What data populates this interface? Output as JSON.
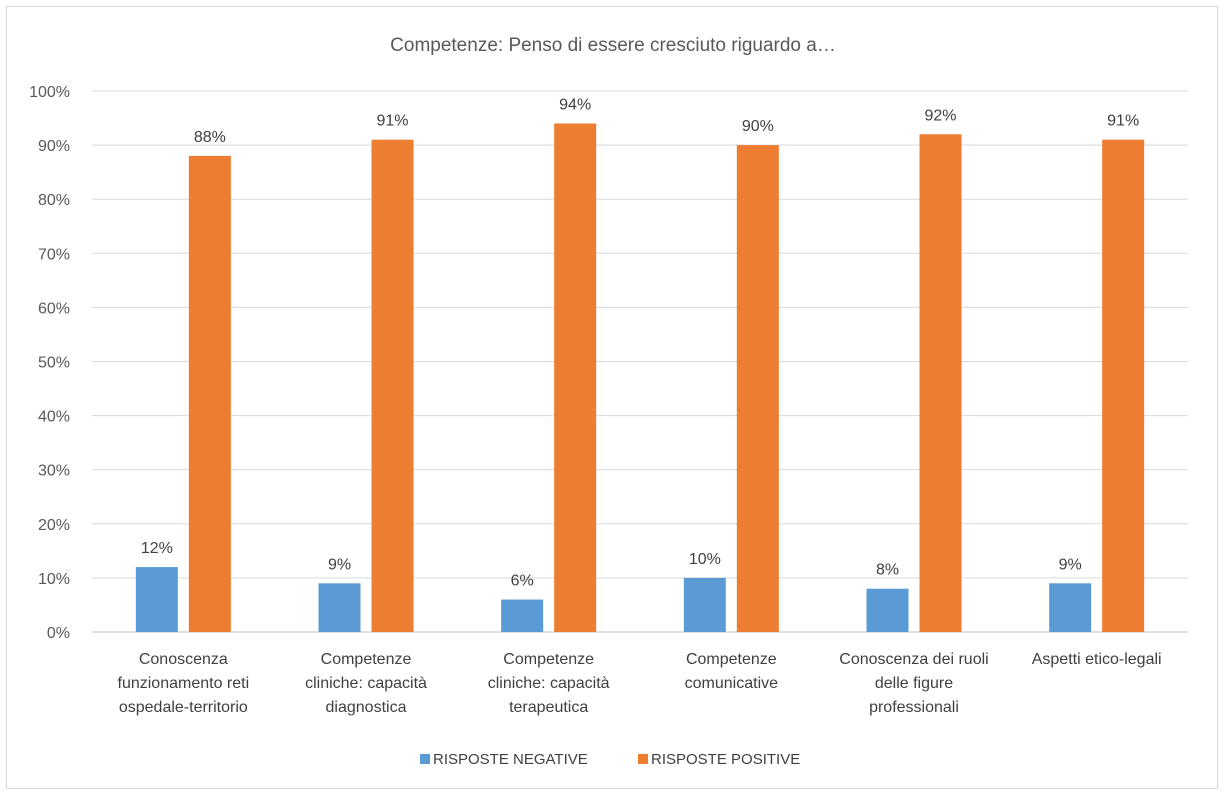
{
  "chart_data": {
    "type": "bar",
    "title": "Competenze: Penso di essere cresciuto riguardo a…",
    "categories": [
      [
        "Conoscenza",
        "funzionamento reti",
        "ospedale-territorio"
      ],
      [
        "Competenze",
        "cliniche: capacità",
        "diagnostica"
      ],
      [
        "Competenze",
        "cliniche: capacità",
        "terapeutica"
      ],
      [
        "Competenze",
        "comunicative"
      ],
      [
        "Conoscenza dei ruoli",
        "delle figure",
        "professionali"
      ],
      [
        "Aspetti etico-legali"
      ]
    ],
    "series": [
      {
        "name": "RISPOSTE NEGATIVE",
        "color": "#5b9bd5",
        "values": [
          12,
          9,
          6,
          10,
          8,
          9
        ],
        "labels": [
          "12%",
          "9%",
          "6%",
          "10%",
          "8%",
          "9%"
        ]
      },
      {
        "name": "RISPOSTE POSITIVE",
        "color": "#ed7d31",
        "values": [
          88,
          91,
          94,
          90,
          92,
          91
        ],
        "labels": [
          "88%",
          "91%",
          "94%",
          "90%",
          "92%",
          "91%"
        ]
      }
    ],
    "y_ticks": [
      "0%",
      "10%",
      "20%",
      "30%",
      "40%",
      "50%",
      "60%",
      "70%",
      "80%",
      "90%",
      "100%"
    ],
    "ylim": [
      0,
      100
    ],
    "grid": true,
    "legend_position": "bottom"
  }
}
